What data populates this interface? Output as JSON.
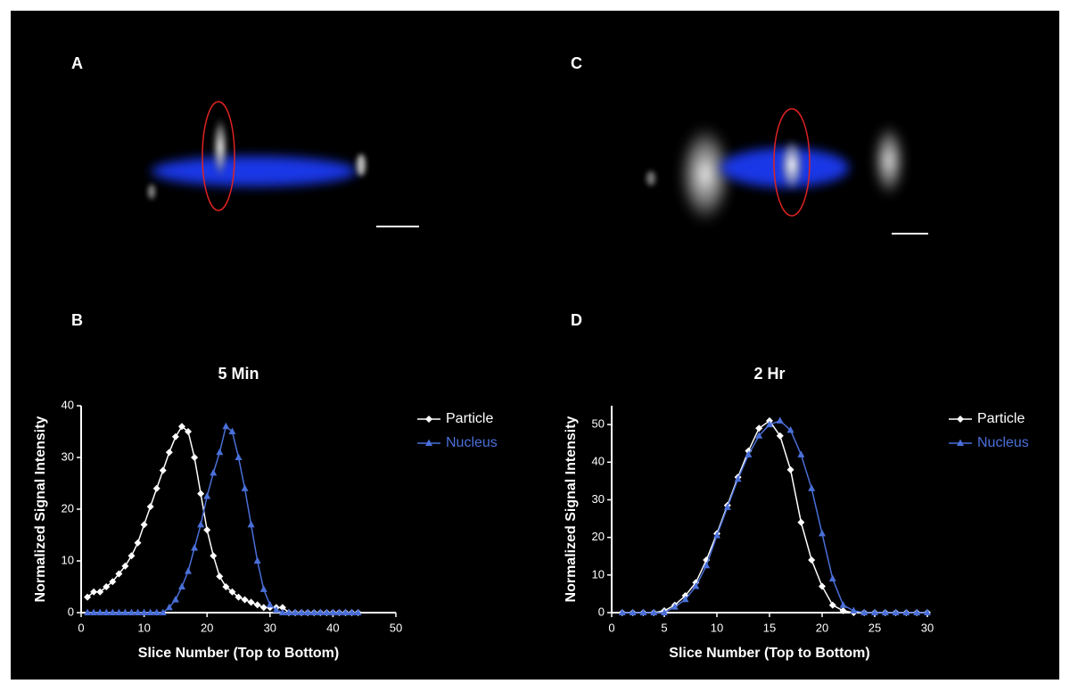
{
  "images": [
    {
      "label": "A"
    },
    {
      "label": "C"
    }
  ],
  "chart_data": [
    {
      "type": "line",
      "panel": "B",
      "title": "5 Min",
      "x_label": "Slice Number (Top to Bottom)",
      "y_label": "Normalized Signal Intensity",
      "x": [
        1,
        2,
        3,
        4,
        5,
        6,
        7,
        8,
        9,
        10,
        11,
        12,
        13,
        14,
        15,
        16,
        17,
        18,
        19,
        20,
        21,
        22,
        23,
        24,
        25,
        26,
        27,
        28,
        29,
        30,
        31,
        32,
        33,
        34,
        35,
        36,
        37,
        38,
        39,
        40,
        41,
        42,
        43,
        44
      ],
      "series": [
        {
          "name": "Particle",
          "color": "#ffffff",
          "marker": "diamond",
          "values": [
            3,
            4,
            4,
            5,
            6,
            7.5,
            9,
            11,
            13.5,
            17,
            20.5,
            24,
            27.5,
            31,
            34,
            36,
            35,
            30,
            23,
            16,
            11,
            7,
            5,
            4,
            3,
            2.5,
            2,
            1.5,
            1,
            1,
            1,
            1,
            0,
            0,
            0,
            0,
            0,
            0,
            0,
            0,
            0,
            0,
            0,
            0
          ]
        },
        {
          "name": "Nucleus",
          "color": "#4a6fd8",
          "marker": "triangle",
          "values": [
            0,
            0,
            0,
            0,
            0,
            0,
            0,
            0,
            0,
            0,
            0,
            0,
            0,
            1,
            2.5,
            5,
            8,
            12.5,
            17,
            22.5,
            27,
            31,
            36,
            35,
            30,
            24,
            17,
            10,
            4.5,
            1.5,
            0.5,
            0,
            0,
            0,
            0,
            0,
            0,
            0,
            0,
            0,
            0,
            0,
            0,
            0
          ]
        }
      ],
      "xlim": [
        0,
        50
      ],
      "xticks": [
        0,
        10,
        20,
        30,
        40,
        50
      ],
      "ylim": [
        0,
        40
      ],
      "yticks": [
        0,
        10,
        20,
        30,
        40
      ]
    },
    {
      "type": "line",
      "panel": "D",
      "title": "2 Hr",
      "x_label": "Slice Number (Top to Bottom)",
      "y_label": "Normalized Signal Intensity",
      "x": [
        1,
        2,
        3,
        4,
        5,
        6,
        7,
        8,
        9,
        10,
        11,
        12,
        13,
        14,
        15,
        16,
        17,
        18,
        19,
        20,
        21,
        22,
        23,
        24,
        25,
        26,
        27,
        28,
        29,
        30
      ],
      "series": [
        {
          "name": "Particle",
          "color": "#ffffff",
          "marker": "diamond",
          "values": [
            0,
            0,
            0,
            0,
            0.5,
            2,
            4.5,
            8,
            14,
            21,
            28.5,
            36,
            43,
            49,
            51,
            47,
            38,
            24,
            14,
            7,
            2,
            0.5,
            0,
            0,
            0,
            0,
            0,
            0,
            0,
            0
          ]
        },
        {
          "name": "Nucleus",
          "color": "#4a6fd8",
          "marker": "triangle",
          "values": [
            0,
            0,
            0,
            0,
            0,
            1.5,
            3.5,
            7,
            12.5,
            20.5,
            28,
            35.5,
            42,
            47,
            50,
            51,
            48.5,
            42,
            33,
            21,
            9,
            2,
            0.5,
            0,
            0,
            0,
            0,
            0,
            0,
            0
          ]
        }
      ],
      "xlim": [
        0,
        30
      ],
      "xticks": [
        0,
        5,
        10,
        15,
        20,
        25,
        30
      ],
      "ylim": [
        0,
        55
      ],
      "yticks": [
        0,
        10,
        20,
        30,
        40,
        50
      ]
    }
  ]
}
